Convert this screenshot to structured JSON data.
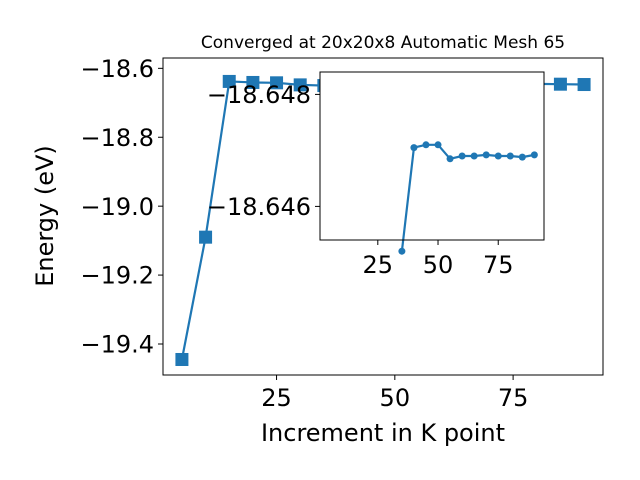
{
  "chart_data": [
    {
      "type": "line",
      "title": "Converged at 20x20x8 Automatic Mesh 65",
      "xlabel": "Increment in K point",
      "ylabel": "Energy (eV)",
      "xlim": [
        1,
        94
      ],
      "ylim": [
        -19.49,
        -18.57
      ],
      "xticks": [
        25,
        50,
        75
      ],
      "yticks": [
        -19.4,
        -19.2,
        -19.0,
        -18.8,
        -18.6
      ],
      "tick_labels": {
        "x": [
          "25",
          "50",
          "75"
        ],
        "y": [
          "−19.4",
          "−19.2",
          "−19.0",
          "−18.8",
          "−18.6"
        ]
      },
      "grid": false,
      "marker": "square",
      "color": "#1f77b4",
      "series": [
        {
          "x": [
            5,
            10,
            15,
            20,
            25,
            30,
            35,
            40,
            45,
            50,
            55,
            60,
            65,
            70,
            75,
            80,
            85,
            90
          ],
          "values": [
            -19.445,
            -19.09,
            -18.638,
            -18.641,
            -18.642,
            -18.648,
            -18.65,
            -18.645,
            -18.645,
            -18.645,
            -18.645,
            -18.645,
            -18.645,
            -18.645,
            -18.645,
            -18.645,
            -18.646,
            -18.647
          ]
        }
      ]
    },
    {
      "type": "line",
      "role": "inset",
      "xlim": [
        1,
        94
      ],
      "ylim": [
        -18.6454,
        -18.6484
      ],
      "xticks": [
        25,
        50,
        75
      ],
      "yticks": [
        -18.648,
        -18.646
      ],
      "tick_labels": {
        "x": [
          "25",
          "50",
          "75"
        ],
        "y": [
          "−18.648",
          "−18.646"
        ]
      },
      "grid": false,
      "marker": "circle",
      "color": "#1f77b4",
      "series": [
        {
          "x": [
            35,
            40,
            45,
            50,
            55,
            60,
            65,
            70,
            75,
            80,
            85,
            90
          ],
          "values": [
            -18.6452,
            -18.64705,
            -18.6471,
            -18.6471,
            -18.64685,
            -18.6469,
            -18.6469,
            -18.64692,
            -18.6469,
            -18.6469,
            -18.64688,
            -18.64692
          ]
        }
      ]
    }
  ]
}
